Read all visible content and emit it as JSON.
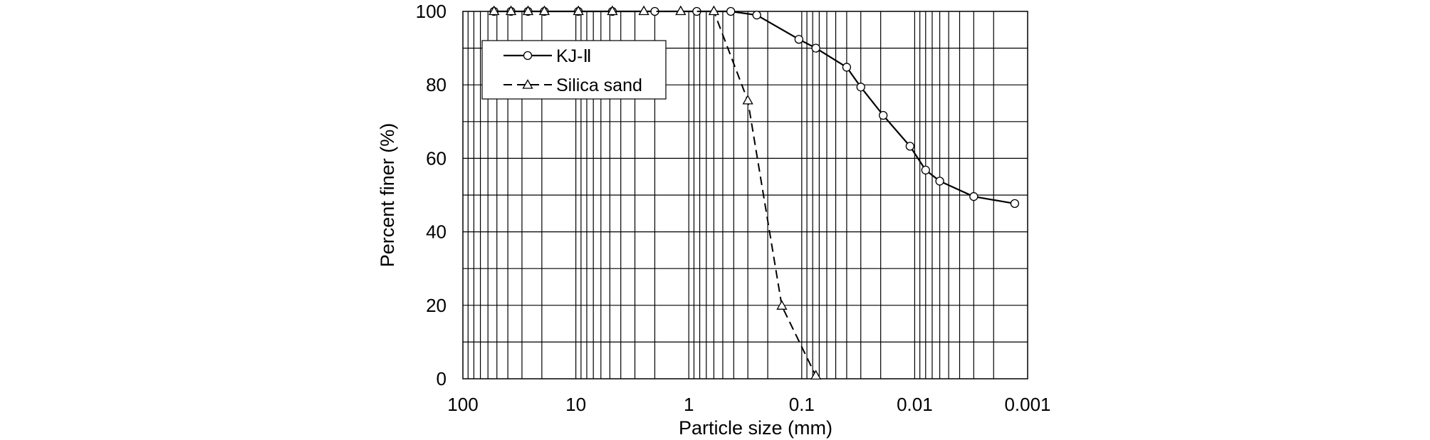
{
  "chart_data": {
    "type": "line",
    "xlabel": "Particle size (mm)",
    "ylabel": "Percent finer (%)",
    "x_scale": "log",
    "x_reversed": true,
    "xlim": [
      100,
      0.001
    ],
    "ylim": [
      0,
      100
    ],
    "x_ticks": [
      100,
      10,
      1,
      0.1,
      0.01,
      0.001
    ],
    "x_tick_labels": [
      "100",
      "10",
      "1",
      "0.1",
      "0.01",
      "0.001"
    ],
    "y_ticks": [
      0,
      20,
      40,
      60,
      80,
      100
    ],
    "y_tick_labels": [
      "0",
      "20",
      "40",
      "60",
      "80",
      "100"
    ],
    "grid": true,
    "legend_position": "top-left",
    "series": [
      {
        "name": "KJ-Ⅱ",
        "marker": "circle",
        "line_style": "solid",
        "x": [
          53,
          37.5,
          26.5,
          19,
          9.5,
          4.75,
          2,
          0.85,
          0.425,
          0.25,
          0.106,
          0.075,
          0.04,
          0.03,
          0.019,
          0.011,
          0.008,
          0.006,
          0.003,
          0.0013
        ],
        "y": [
          100,
          100,
          100,
          100,
          100,
          100,
          100,
          100,
          100,
          99,
          92.4,
          90,
          84.8,
          79.4,
          71.7,
          63.3,
          56.8,
          53.8,
          49.6,
          47.7
        ]
      },
      {
        "name": "Silica sand",
        "marker": "triangle",
        "line_style": "dashed",
        "x": [
          53,
          37.5,
          26.5,
          19,
          9.5,
          4.75,
          2.5,
          1.18,
          0.6,
          0.3,
          0.15,
          0.075
        ],
        "y": [
          100,
          100,
          100,
          100,
          100,
          100,
          100,
          100,
          100,
          75.7,
          19.8,
          0.8
        ]
      }
    ]
  }
}
